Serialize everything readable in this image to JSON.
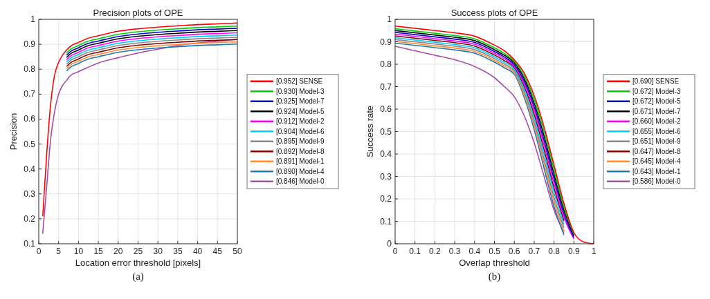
{
  "chart_data": [
    {
      "type": "line",
      "title": "Precision plots of OPE",
      "xlabel": "Location error threshold [pixels]",
      "ylabel": "Precision",
      "annotations": [
        "(a)"
      ],
      "xlim": [
        0,
        50
      ],
      "xticks": [
        0,
        5,
        10,
        15,
        20,
        25,
        30,
        35,
        40,
        45,
        50
      ],
      "ylim": [
        0.1,
        1
      ],
      "yticks": [
        0.1,
        0.2,
        0.3,
        0.4,
        0.5,
        0.6,
        0.7,
        0.8,
        0.9,
        1
      ],
      "grid": true,
      "legend": "right",
      "line_style": "solid",
      "x": [
        1,
        2,
        3,
        4,
        5,
        6,
        7,
        8,
        10,
        12,
        15,
        20,
        25,
        30,
        35,
        40,
        45,
        50
      ],
      "series": [
        {
          "name": "[0.952] SENSE",
          "color": "#ff0000",
          "values": [
            0.21,
            0.46,
            0.662,
            0.777,
            0.827,
            0.857,
            0.877,
            0.892,
            0.907,
            0.922,
            0.934,
            0.952,
            0.962,
            0.969,
            0.974,
            0.979,
            0.982,
            0.985
          ]
        },
        {
          "name": "[0.930] Model-3",
          "color": "#00cc00",
          "values": [
            null,
            null,
            null,
            null,
            null,
            null,
            0.865,
            0.88,
            0.895,
            0.91,
            0.922,
            0.94,
            0.95,
            0.957,
            0.962,
            0.967,
            0.97,
            0.973
          ]
        },
        {
          "name": "[0.925] Model-7",
          "color": "#0000cc",
          "values": [
            null,
            null,
            null,
            null,
            null,
            null,
            0.856,
            0.871,
            0.886,
            0.901,
            0.913,
            0.931,
            0.941,
            0.948,
            0.953,
            0.958,
            0.961,
            0.964
          ]
        },
        {
          "name": "[0.924] Model-5",
          "color": "#000000",
          "values": [
            null,
            null,
            null,
            null,
            null,
            null,
            0.847,
            0.862,
            0.877,
            0.892,
            0.904,
            0.922,
            0.932,
            0.939,
            0.944,
            0.949,
            0.952,
            0.955
          ]
        },
        {
          "name": "[0.912] Model-2",
          "color": "#ff00ff",
          "values": [
            null,
            null,
            null,
            null,
            null,
            null,
            0.838,
            0.853,
            0.868,
            0.883,
            0.895,
            0.913,
            0.923,
            0.93,
            0.935,
            0.94,
            0.943,
            0.946
          ]
        },
        {
          "name": "[0.904] Model-6",
          "color": "#00ccff",
          "values": [
            null,
            null,
            null,
            null,
            null,
            null,
            0.829,
            0.844,
            0.859,
            0.874,
            0.886,
            0.904,
            0.914,
            0.921,
            0.926,
            0.931,
            0.934,
            0.937
          ]
        },
        {
          "name": "[0.895] Model-9",
          "color": "#888888",
          "values": [
            null,
            null,
            null,
            null,
            null,
            null,
            0.82,
            0.835,
            0.85,
            0.865,
            0.877,
            0.895,
            0.905,
            0.912,
            0.917,
            0.922,
            0.925,
            0.928
          ]
        },
        {
          "name": "[0.892] Model-8",
          "color": "#800000",
          "values": [
            null,
            null,
            null,
            null,
            null,
            null,
            0.811,
            0.826,
            0.841,
            0.856,
            0.868,
            0.886,
            0.896,
            0.903,
            0.908,
            0.913,
            0.916,
            0.919
          ]
        },
        {
          "name": "[0.891] Model-1",
          "color": "#ff8c33",
          "values": [
            null,
            null,
            null,
            null,
            null,
            null,
            0.802,
            0.817,
            0.832,
            0.847,
            0.859,
            0.877,
            0.887,
            0.894,
            0.899,
            0.904,
            0.907,
            0.91
          ]
        },
        {
          "name": "[0.890] Model-4",
          "color": "#1f77b4",
          "values": [
            null,
            null,
            null,
            null,
            null,
            null,
            0.793,
            0.808,
            0.823,
            0.838,
            0.85,
            0.868,
            0.878,
            0.885,
            0.89,
            0.895,
            0.898,
            0.901
          ]
        },
        {
          "name": "[0.846] Model-0",
          "color": "#a64ca6",
          "values": [
            0.14,
            0.33,
            0.52,
            0.63,
            0.7,
            0.735,
            0.755,
            0.775,
            0.79,
            0.805,
            0.825,
            0.846,
            0.865,
            0.88,
            0.895,
            0.905,
            0.912,
            0.92
          ]
        }
      ]
    },
    {
      "type": "line",
      "title": "Success plots of OPE",
      "xlabel": "Overlap threshold",
      "ylabel": "Success rate",
      "annotations": [
        "(b)"
      ],
      "xlim": [
        0,
        1
      ],
      "xticks": [
        0,
        0.1,
        0.2,
        0.3,
        0.4,
        0.5,
        0.6,
        0.7,
        0.8,
        0.9,
        1
      ],
      "ylim": [
        0,
        1
      ],
      "yticks": [
        0,
        0.1,
        0.2,
        0.3,
        0.4,
        0.5,
        0.6,
        0.7,
        0.8,
        0.9,
        1
      ],
      "grid": true,
      "legend": "right",
      "line_style": "solid",
      "x": [
        0,
        0.1,
        0.2,
        0.3,
        0.4,
        0.5,
        0.55,
        0.6,
        0.65,
        0.7,
        0.75,
        0.8,
        0.85,
        0.9,
        0.95,
        1
      ],
      "series": [
        {
          "name": "[0.690] SENSE",
          "color": "#ff0000",
          "values": [
            0.97,
            0.96,
            0.95,
            0.94,
            0.925,
            0.885,
            0.86,
            0.82,
            0.76,
            0.66,
            0.52,
            0.35,
            0.18,
            0.05,
            0.008,
            0
          ]
        },
        {
          "name": "[0.672] Model-3",
          "color": "#00cc00",
          "values": [
            0.958,
            0.948,
            0.938,
            0.928,
            0.913,
            0.873,
            0.848,
            0.813,
            0.748,
            0.643,
            0.5,
            0.33,
            0.164,
            0.043,
            null,
            null
          ]
        },
        {
          "name": "[0.672] Model-5",
          "color": "#0000cc",
          "values": [
            0.942,
            0.932,
            0.922,
            0.912,
            0.897,
            0.857,
            0.832,
            0.798,
            0.724,
            0.61,
            0.459,
            0.289,
            0.133,
            0.029,
            null,
            null
          ]
        },
        {
          "name": "[0.671] Model-7",
          "color": "#000000",
          "values": [
            0.95,
            0.94,
            0.93,
            0.92,
            0.905,
            0.865,
            0.84,
            0.806,
            0.736,
            0.626,
            0.479,
            0.309,
            0.149,
            0.036,
            null,
            null
          ]
        },
        {
          "name": "[0.660] Model-2",
          "color": "#ff00ff",
          "values": [
            0.934,
            0.924,
            0.914,
            0.904,
            0.889,
            0.849,
            0.824,
            0.791,
            0.712,
            0.593,
            0.438,
            0.268,
            0.118,
            0.022,
            null,
            null
          ]
        },
        {
          "name": "[0.655] Model-6",
          "color": "#00ccff",
          "values": [
            0.918,
            0.908,
            0.898,
            0.888,
            0.873,
            0.833,
            0.808,
            0.777,
            0.688,
            0.559,
            0.398,
            0.228,
            0.086,
            null,
            null,
            null
          ]
        },
        {
          "name": "[0.651] Model-9",
          "color": "#888888",
          "values": [
            0.91,
            0.9,
            0.89,
            0.88,
            0.865,
            0.825,
            0.8,
            0.77,
            0.676,
            0.542,
            0.377,
            0.207,
            0.071,
            null,
            null,
            null
          ]
        },
        {
          "name": "[0.647] Model-8",
          "color": "#800000",
          "values": [
            0.926,
            0.916,
            0.906,
            0.896,
            0.881,
            0.841,
            0.816,
            0.784,
            0.7,
            0.576,
            0.418,
            0.248,
            0.102,
            null,
            null,
            null
          ]
        },
        {
          "name": "[0.645] Model-4",
          "color": "#ff8c33",
          "values": [
            0.902,
            0.892,
            0.882,
            0.872,
            0.857,
            0.817,
            0.792,
            0.762,
            0.664,
            0.526,
            0.357,
            0.187,
            0.055,
            null,
            null,
            null
          ]
        },
        {
          "name": "[0.643] Model-1",
          "color": "#1f77b4",
          "values": [
            0.894,
            0.884,
            0.874,
            0.864,
            0.849,
            0.809,
            0.784,
            0.755,
            0.652,
            0.509,
            0.336,
            0.166,
            0.04,
            null,
            null,
            null
          ]
        },
        {
          "name": "[0.586] Model-0",
          "color": "#a64ca6",
          "values": [
            0.88,
            0.86,
            0.84,
            0.82,
            0.79,
            0.74,
            0.7,
            0.655,
            0.57,
            0.45,
            0.3,
            0.15,
            0.05,
            null,
            null,
            null
          ]
        }
      ]
    }
  ]
}
